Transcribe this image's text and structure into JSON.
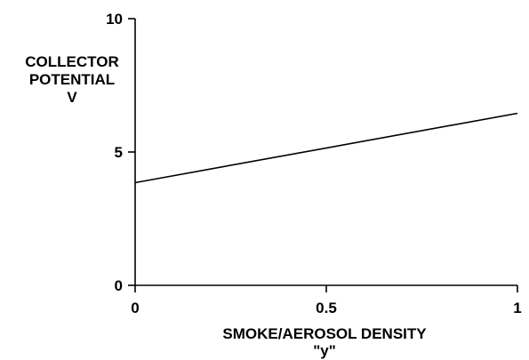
{
  "chart_data": {
    "type": "line",
    "title": "",
    "ylabel_lines": [
      "COLLECTOR",
      "POTENTIAL",
      "V"
    ],
    "xlabel_lines": [
      "SMOKE/AEROSOL DENSITY",
      "\"y\""
    ],
    "xlim": [
      0,
      1
    ],
    "ylim": [
      0,
      10
    ],
    "x_ticks": [
      {
        "value": 0,
        "label": "0"
      },
      {
        "value": 0.5,
        "label": "0.5"
      },
      {
        "value": 1,
        "label": "1"
      }
    ],
    "y_ticks": [
      {
        "value": 0,
        "label": "0"
      },
      {
        "value": 5,
        "label": "5"
      },
      {
        "value": 10,
        "label": "10"
      }
    ],
    "grid": false,
    "series": [
      {
        "x": [
          0,
          1
        ],
        "y": [
          3.85,
          6.45
        ]
      }
    ],
    "colors": {
      "axis": "#000000",
      "line": "#000000"
    }
  }
}
